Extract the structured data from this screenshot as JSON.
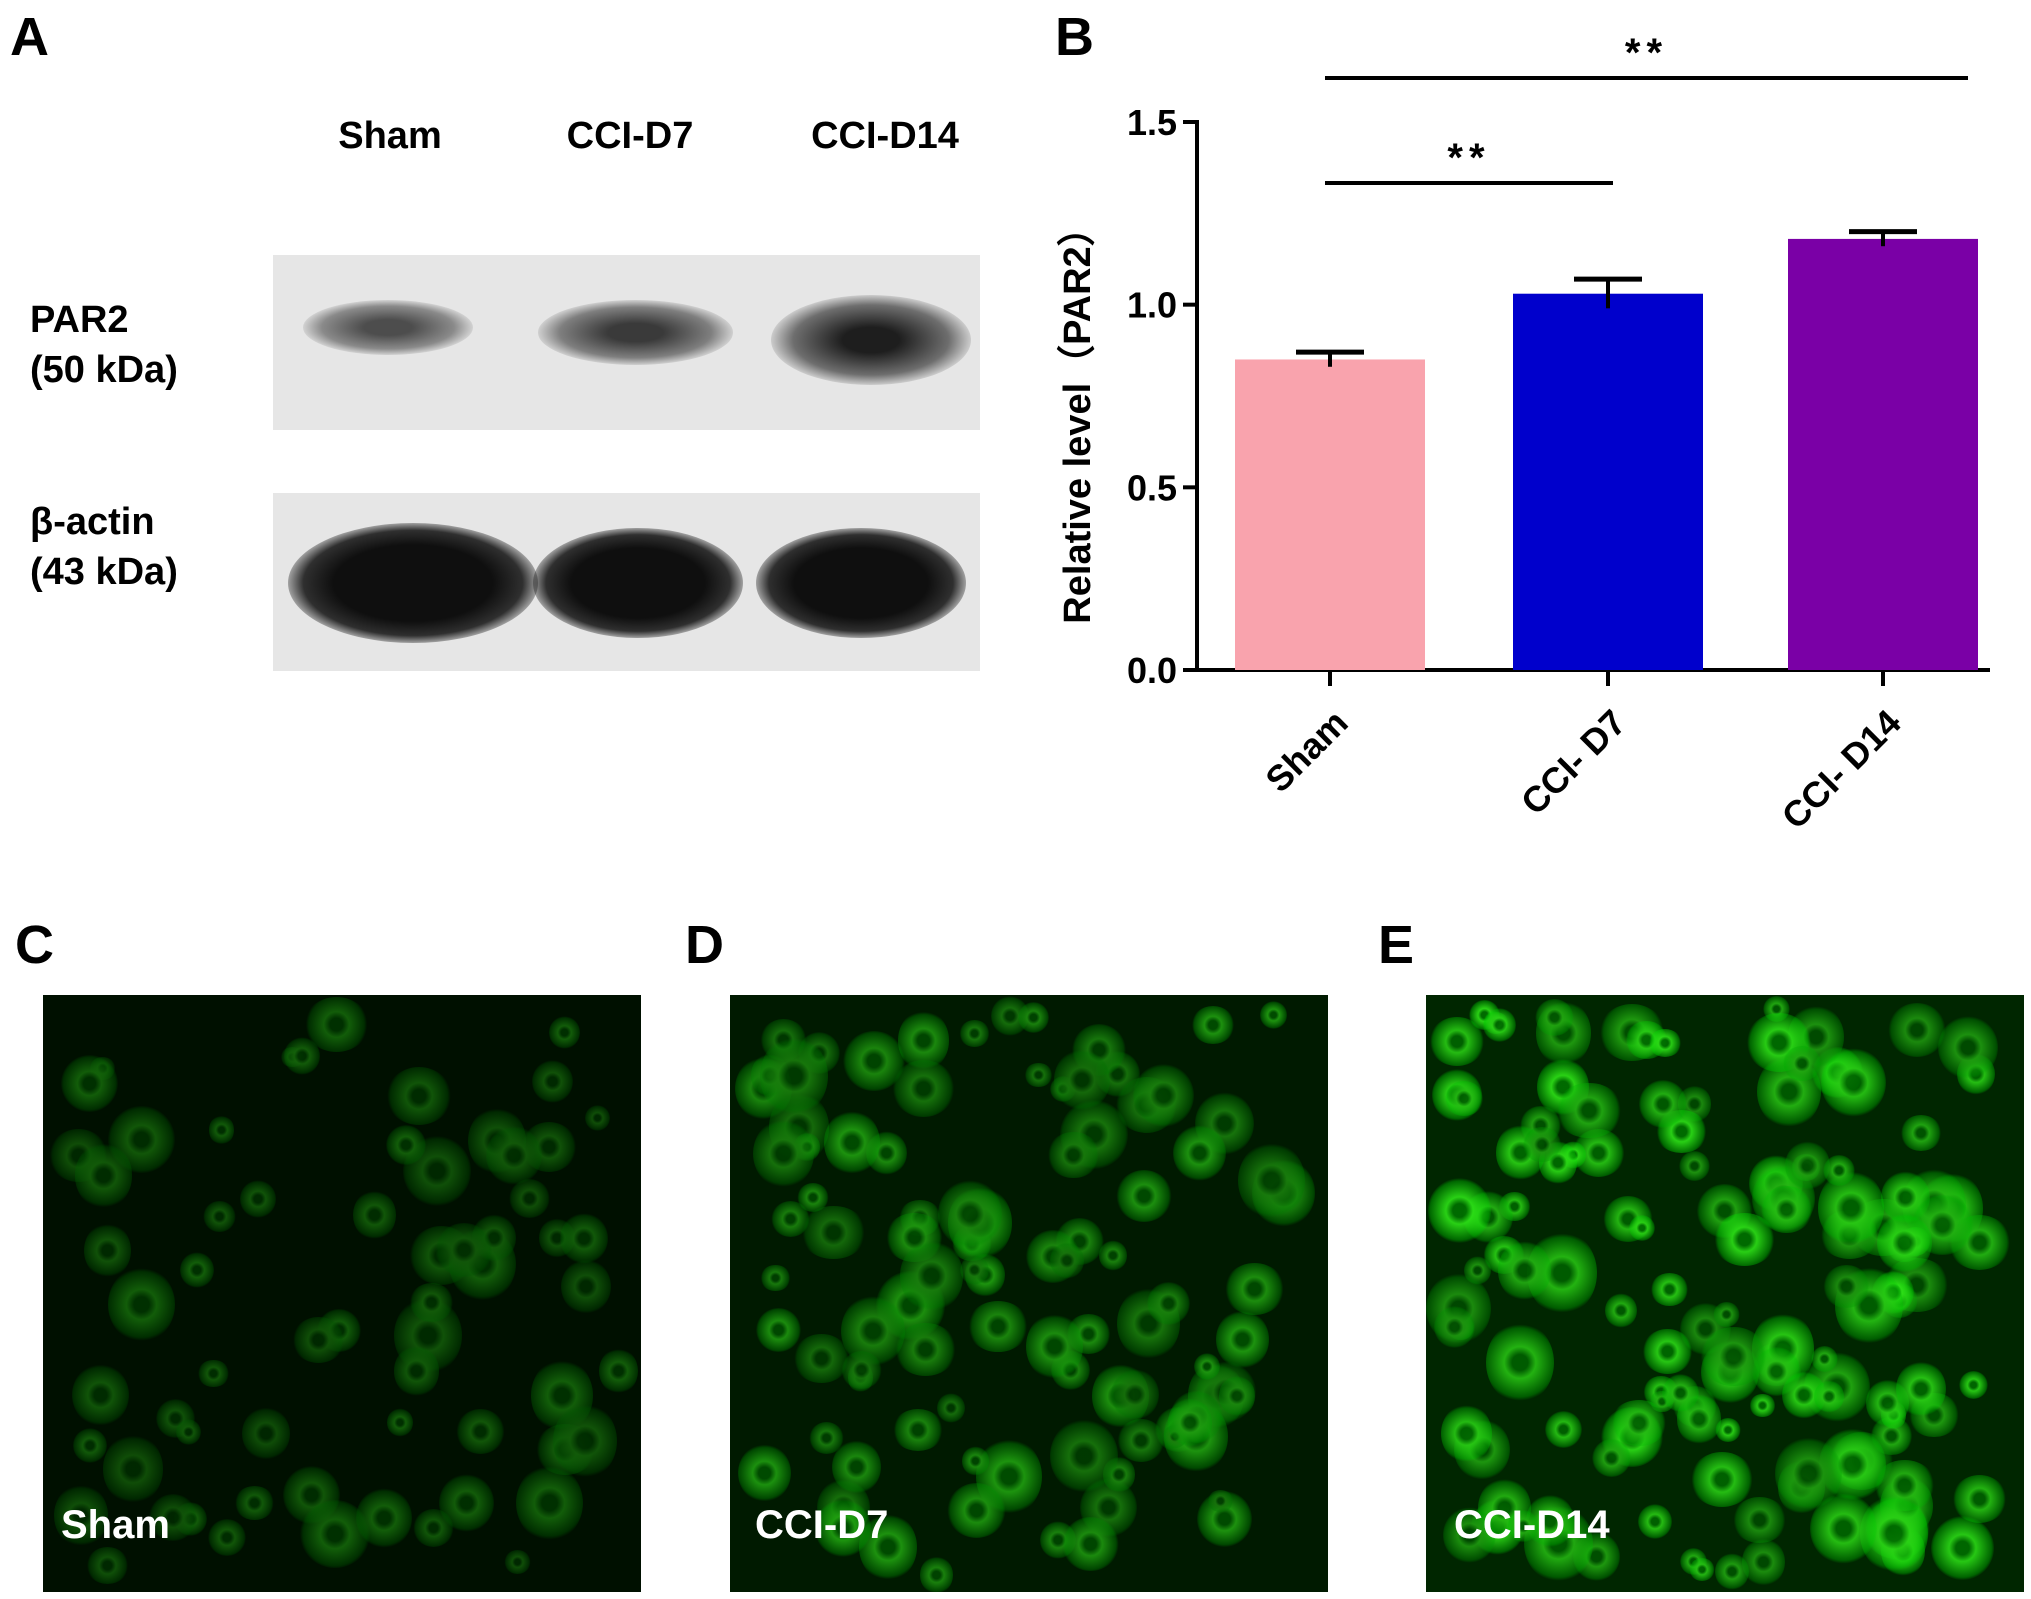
{
  "panels": {
    "A": "A",
    "B": "B",
    "C": "C",
    "D": "D",
    "E": "E"
  },
  "western_blot": {
    "lanes": [
      "Sham",
      "CCI-D7",
      "CCI-D14"
    ],
    "rows": [
      {
        "name": "PAR2",
        "size": "(50 kDa)"
      },
      {
        "name": "β-actin",
        "size": "(43 kDa)"
      }
    ],
    "band_intensity_par2": [
      0.45,
      0.65,
      0.95
    ],
    "band_intensity_actin": [
      1.0,
      1.0,
      1.0
    ]
  },
  "micrographs": [
    {
      "label": "Sham",
      "brightness": 0.25
    },
    {
      "label": "CCI-D7",
      "brightness": 0.6
    },
    {
      "label": "CCI-D14",
      "brightness": 1.0
    }
  ],
  "chart_data": {
    "type": "bar",
    "categories": [
      "Sham",
      "CCI- D7",
      "CCI- D14"
    ],
    "values": [
      0.85,
      1.03,
      1.18
    ],
    "errors": [
      0.02,
      0.04,
      0.02
    ],
    "colors": [
      "#f9a3ad",
      "#0000cc",
      "#7a00a6"
    ],
    "ylabel": "Relative level（PAR2）",
    "ylim": [
      0,
      1.5
    ],
    "yticks": [
      "0.0",
      "0.5",
      "1.0",
      "1.5"
    ],
    "significance": [
      {
        "from": 0,
        "to": 1,
        "label": "**"
      },
      {
        "from": 0,
        "to": 2,
        "label": "**"
      }
    ]
  }
}
